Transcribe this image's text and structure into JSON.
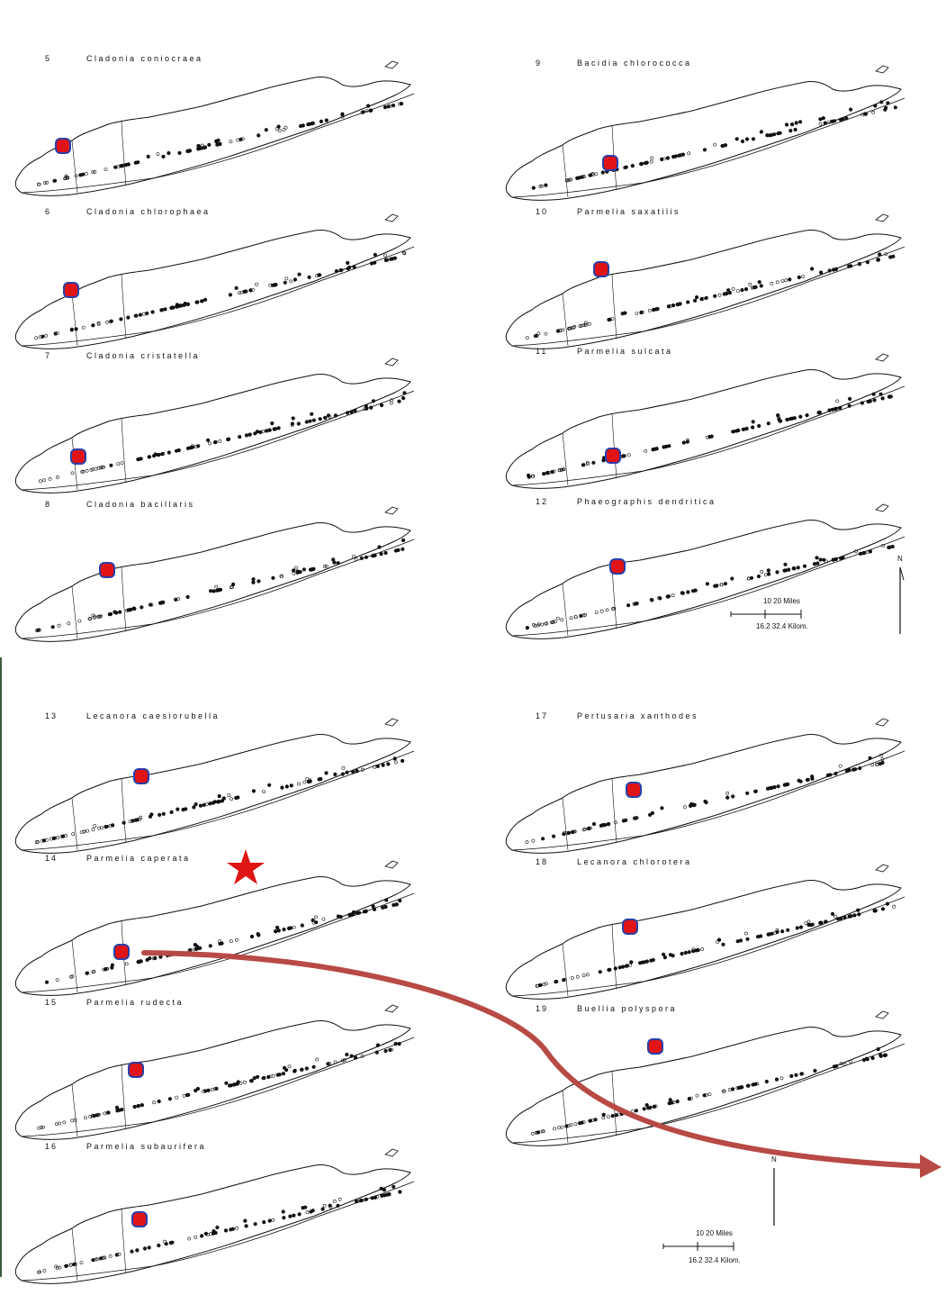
{
  "maps": [
    {
      "number": "5",
      "species": "Cladonia coniocraea"
    },
    {
      "number": "6",
      "species": "Cladonia chlorophaea"
    },
    {
      "number": "7",
      "species": "Cladonia cristatella"
    },
    {
      "number": "8",
      "species": "Cladonia bacillaris"
    },
    {
      "number": "9",
      "species": "Bacidia chlorococca"
    },
    {
      "number": "10",
      "species": "Parmelia saxatilis"
    },
    {
      "number": "11",
      "species": "Parmelia sulcata"
    },
    {
      "number": "12",
      "species": "Phaeographis dendritica"
    },
    {
      "number": "13",
      "species": "Lecanora caesiorubella"
    },
    {
      "number": "14",
      "species": "Parmelia caperata"
    },
    {
      "number": "15",
      "species": "Parmelia rudecta"
    },
    {
      "number": "16",
      "species": "Parmelia subaurifera"
    },
    {
      "number": "17",
      "species": "Pertusaria xanthodes"
    },
    {
      "number": "18",
      "species": "Lecanora chlorotera"
    },
    {
      "number": "19",
      "species": "Buellia polyspora"
    }
  ],
  "scale_bars": [
    {
      "miles": "10   20 Miles",
      "kilometers": "16.2  32.4 Kilom.",
      "north": "N"
    },
    {
      "miles": "10   20 Miles",
      "kilometers": "16.2  32.4 Kilom.",
      "north": "N"
    }
  ],
  "colors": {
    "marker_fill": "#e01414",
    "marker_stroke": "#2b3fa8",
    "arrow": "#b84a45",
    "star": "#e01414",
    "ink": "#111111"
  }
}
